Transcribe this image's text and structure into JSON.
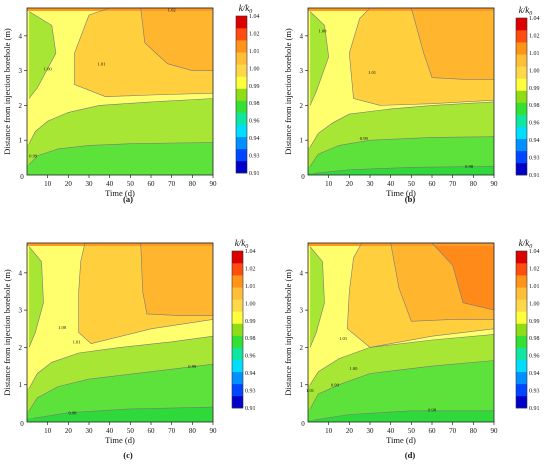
{
  "colorbar": {
    "title": "k/k0",
    "title_main": "k/k",
    "title_sub": "0",
    "ticks": [
      "1.04",
      "1.02",
      "1.01",
      "1.00",
      "0.99",
      "0.98",
      "0.96",
      "0.94",
      "0.93",
      "0.91"
    ],
    "colors": [
      "#0000c8",
      "#0045ff",
      "#0090ff",
      "#00ddff",
      "#10e6a0",
      "#35e034",
      "#8edd16",
      "#ffff3c",
      "#ffd84a",
      "#ffbe37",
      "#ff9418",
      "#ff4d10",
      "#dd0000"
    ]
  },
  "fill_colors": {
    "lvl098": "#5ce23a",
    "lvl099": "#a8e635",
    "lvl100": "#ffff6e",
    "lvl101": "#ffcf3e",
    "lvl102": "#ffb52e",
    "lvl103": "#ff8a1a"
  },
  "chart_data": [
    {
      "panel_label": "(a)",
      "type": "contour",
      "xlabel": "Time (d)",
      "ylabel": "Distance from injection borehole (m)",
      "xlim": [
        0,
        90
      ],
      "ylim": [
        0,
        4.8
      ],
      "xticks": [
        "10",
        "20",
        "30",
        "40",
        "50",
        "60",
        "70",
        "80",
        "90"
      ],
      "yticks": [
        "1",
        "2",
        "3",
        "4"
      ],
      "contour_labels": [
        "0.99",
        "1.00",
        "1.01",
        "1.02"
      ],
      "boundaries": {
        "c099": [
          [
            1,
            0.3
          ],
          [
            5,
            0.55
          ],
          [
            15,
            0.75
          ],
          [
            30,
            0.85
          ],
          [
            50,
            0.9
          ],
          [
            70,
            0.92
          ],
          [
            90,
            0.93
          ]
        ],
        "c100": [
          [
            1,
            0.9
          ],
          [
            4,
            1.25
          ],
          [
            10,
            1.55
          ],
          [
            20,
            1.8
          ],
          [
            35,
            2.0
          ],
          [
            60,
            2.1
          ],
          [
            90,
            2.2
          ]
        ],
        "c101": [
          [
            90,
            4.8
          ],
          [
            40,
            4.8
          ],
          [
            30,
            4.6
          ],
          [
            23,
            3.5
          ],
          [
            23,
            2.6
          ],
          [
            38,
            2.25
          ],
          [
            60,
            2.3
          ],
          [
            90,
            2.35
          ]
        ],
        "c102": [
          [
            90,
            4.8
          ],
          [
            55,
            4.8
          ],
          [
            57,
            3.8
          ],
          [
            68,
            3.2
          ],
          [
            80,
            3.0
          ],
          [
            90,
            3.0
          ]
        ],
        "gwedge": [
          [
            1,
            4.7
          ],
          [
            12,
            4.3
          ],
          [
            14,
            3.5
          ],
          [
            5,
            2.5
          ],
          [
            1,
            2.2
          ]
        ]
      },
      "label_pos": {
        "c099": [
          3,
          0.5
        ],
        "c100": [
          10,
          3.0
        ],
        "c101": [
          36,
          3.15
        ],
        "c102": [
          70,
          4.7
        ]
      }
    },
    {
      "panel_label": "(b)",
      "type": "contour",
      "xlabel": "Time (d)",
      "ylabel": "Distance from injection borehole (m)",
      "xlim": [
        0,
        90
      ],
      "ylim": [
        0,
        4.8
      ],
      "xticks": [
        "10",
        "20",
        "30",
        "40",
        "50",
        "60",
        "70",
        "80",
        "90"
      ],
      "yticks": [
        "1",
        "2",
        "3",
        "4"
      ],
      "contour_labels": [
        "1.00",
        "1.01",
        "0.99",
        "0.98"
      ],
      "boundaries": {
        "c098": [
          [
            3,
            0.05
          ],
          [
            20,
            0.15
          ],
          [
            50,
            0.22
          ],
          [
            90,
            0.25
          ]
        ],
        "c099": [
          [
            1,
            0.25
          ],
          [
            5,
            0.6
          ],
          [
            15,
            0.85
          ],
          [
            30,
            1.0
          ],
          [
            60,
            1.08
          ],
          [
            90,
            1.1
          ]
        ],
        "c100": [
          [
            1,
            0.8
          ],
          [
            5,
            1.2
          ],
          [
            12,
            1.5
          ],
          [
            20,
            1.75
          ],
          [
            40,
            1.9
          ],
          [
            60,
            2.0
          ],
          [
            90,
            2.1
          ]
        ],
        "c101": [
          [
            90,
            4.8
          ],
          [
            30,
            4.8
          ],
          [
            25,
            4.5
          ],
          [
            20,
            3.5
          ],
          [
            22,
            2.2
          ],
          [
            35,
            2.0
          ],
          [
            60,
            2.05
          ],
          [
            90,
            2.15
          ]
        ],
        "c102": [
          [
            90,
            4.8
          ],
          [
            50,
            4.8
          ],
          [
            56,
            3.5
          ],
          [
            60,
            2.8
          ],
          [
            75,
            2.75
          ],
          [
            90,
            2.75
          ]
        ],
        "gwedge": [
          [
            1,
            4.7
          ],
          [
            8,
            4.3
          ],
          [
            10,
            3.4
          ],
          [
            4,
            2.4
          ],
          [
            1,
            2.0
          ]
        ]
      },
      "label_pos": {
        "c100": [
          7,
          4.1
        ],
        "c101": [
          31,
          2.9
        ],
        "c099": [
          27,
          1.0
        ],
        "c098": [
          78,
          0.2
        ]
      }
    },
    {
      "panel_label": "(c)",
      "type": "contour",
      "xlabel": "Time (d)",
      "ylabel": "Distance from injection borehole (m)",
      "xlim": [
        0,
        90
      ],
      "ylim": [
        0,
        4.8
      ],
      "xticks": [
        "10",
        "20",
        "30",
        "40",
        "50",
        "60",
        "70",
        "80",
        "90"
      ],
      "yticks": [
        "1",
        "2",
        "3",
        "4"
      ],
      "contour_labels": [
        "1.00",
        "1.01",
        "0.99",
        "0.98"
      ],
      "boundaries": {
        "c098": [
          [
            3,
            0.1
          ],
          [
            20,
            0.25
          ],
          [
            50,
            0.35
          ],
          [
            90,
            0.4
          ]
        ],
        "c099": [
          [
            1,
            0.3
          ],
          [
            5,
            0.65
          ],
          [
            15,
            0.95
          ],
          [
            30,
            1.15
          ],
          [
            60,
            1.35
          ],
          [
            90,
            1.55
          ]
        ],
        "c100": [
          [
            1,
            0.9
          ],
          [
            5,
            1.3
          ],
          [
            12,
            1.6
          ],
          [
            25,
            1.85
          ],
          [
            45,
            2.0
          ],
          [
            70,
            2.15
          ],
          [
            90,
            2.3
          ]
        ],
        "c101": [
          [
            90,
            4.8
          ],
          [
            28,
            4.8
          ],
          [
            26,
            4.3
          ],
          [
            25,
            3.5
          ],
          [
            25,
            2.4
          ],
          [
            31,
            2.1
          ],
          [
            60,
            2.5
          ],
          [
            90,
            2.75
          ]
        ],
        "c102": [
          [
            90,
            4.8
          ],
          [
            55,
            4.8
          ],
          [
            56,
            3.5
          ],
          [
            58,
            2.9
          ],
          [
            75,
            2.85
          ],
          [
            90,
            2.85
          ]
        ],
        "gwedge": [
          [
            1,
            4.7
          ],
          [
            7,
            4.3
          ],
          [
            8,
            3.2
          ],
          [
            4,
            2.4
          ],
          [
            1,
            2.0
          ]
        ]
      },
      "label_pos": {
        "c100": [
          17,
          2.5
        ],
        "c101": [
          24,
          2.1
        ],
        "c099": [
          80,
          1.45
        ],
        "c098": [
          22,
          0.2
        ]
      }
    },
    {
      "panel_label": "(d)",
      "type": "contour",
      "xlabel": "Time (d)",
      "ylabel": "Distance from injection borehole (m)",
      "xlim": [
        0,
        90
      ],
      "ylim": [
        0,
        4.8
      ],
      "xticks": [
        "10",
        "20",
        "30",
        "40",
        "50",
        "60",
        "70",
        "80",
        "90"
      ],
      "yticks": [
        "1",
        "2",
        "3",
        "4"
      ],
      "contour_labels": [
        "1.01",
        "1.00",
        "0.99",
        "1.01",
        "0.98"
      ],
      "boundaries": {
        "c098": [
          [
            3,
            0.05
          ],
          [
            20,
            0.2
          ],
          [
            50,
            0.3
          ],
          [
            90,
            0.3
          ]
        ],
        "c099": [
          [
            1,
            0.35
          ],
          [
            5,
            0.75
          ],
          [
            15,
            1.0
          ],
          [
            30,
            1.3
          ],
          [
            60,
            1.5
          ],
          [
            90,
            1.65
          ]
        ],
        "c100": [
          [
            1,
            1.0
          ],
          [
            5,
            1.35
          ],
          [
            15,
            1.7
          ],
          [
            30,
            2.0
          ],
          [
            60,
            2.2
          ],
          [
            90,
            2.35
          ]
        ],
        "c101": [
          [
            90,
            4.8
          ],
          [
            26,
            4.8
          ],
          [
            22,
            4.4
          ],
          [
            20,
            3.5
          ],
          [
            19,
            2.5
          ],
          [
            30,
            2.0
          ],
          [
            60,
            2.3
          ],
          [
            90,
            2.5
          ]
        ],
        "c102": [
          [
            90,
            4.8
          ],
          [
            40,
            4.8
          ],
          [
            44,
            3.6
          ],
          [
            50,
            2.7
          ],
          [
            70,
            2.75
          ],
          [
            90,
            2.75
          ]
        ],
        "c103": [
          [
            90,
            4.8
          ],
          [
            60,
            4.8
          ],
          [
            70,
            4.2
          ],
          [
            75,
            3.2
          ],
          [
            90,
            3.0
          ]
        ],
        "gwedge": [
          [
            1,
            4.7
          ],
          [
            7,
            4.3
          ],
          [
            8,
            3.2
          ],
          [
            4,
            2.4
          ],
          [
            1,
            2.0
          ]
        ]
      },
      "label_pos": {
        "c101": [
          17,
          2.2
        ],
        "c100": [
          22,
          1.4
        ],
        "c099": [
          13,
          0.95
        ],
        "c101b": [
          1,
          0.8
        ],
        "c098": [
          60,
          0.28
        ]
      }
    }
  ]
}
